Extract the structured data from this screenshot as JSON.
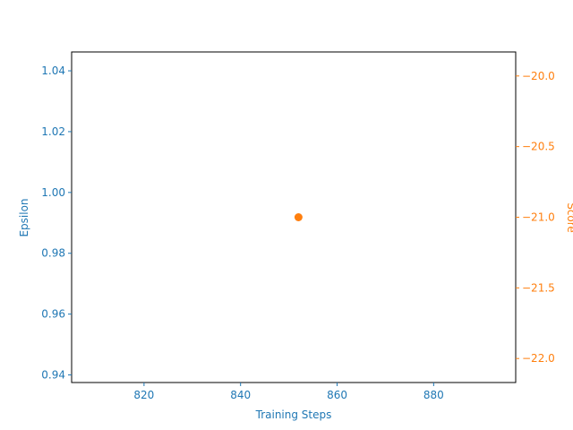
{
  "chart_data": {
    "type": "scatter",
    "title": "",
    "xlabel": "Training Steps",
    "xlim": [
      805,
      897
    ],
    "x_ticks": [
      820,
      840,
      860,
      880
    ],
    "left_axis": {
      "label": "Epsilon",
      "color": "#1f77b4",
      "ylim": [
        0.9375,
        1.0462
      ],
      "ticks": [
        "0.94",
        "0.96",
        "0.98",
        "1.00",
        "1.02",
        "1.04"
      ]
    },
    "right_axis": {
      "label": "Score",
      "color": "#ff7f0e",
      "ylim": [
        -22.17,
        -19.83
      ],
      "ticks": [
        "−20.0",
        "−20.5",
        "−21.0",
        "−21.5",
        "−22.0"
      ]
    },
    "series": [
      {
        "axis": "left",
        "color": "#1f77b4",
        "points": []
      },
      {
        "axis": "right",
        "color": "#ff7f0e",
        "points": [
          {
            "x": 852,
            "y": -21.0
          }
        ]
      }
    ],
    "grid": false
  }
}
